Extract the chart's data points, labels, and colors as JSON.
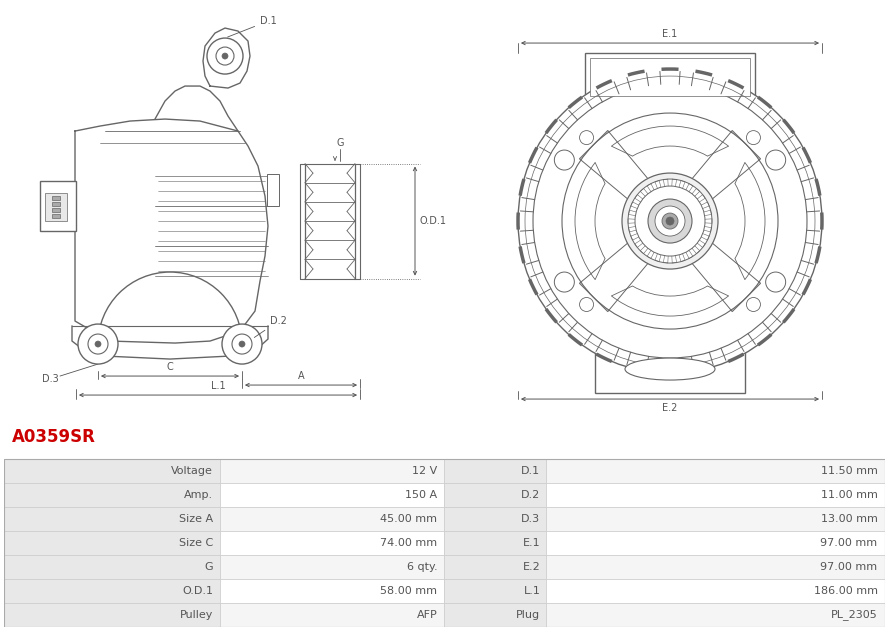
{
  "title": "A0359SR",
  "title_color": "#cc0000",
  "bg_color": "#ffffff",
  "table_data": [
    [
      "Voltage",
      "12 V",
      "D.1",
      "11.50 mm"
    ],
    [
      "Amp.",
      "150 A",
      "D.2",
      "11.00 mm"
    ],
    [
      "Size A",
      "45.00 mm",
      "D.3",
      "13.00 mm"
    ],
    [
      "Size C",
      "74.00 mm",
      "E.1",
      "97.00 mm"
    ],
    [
      "G",
      "6 qty.",
      "E.2",
      "97.00 mm"
    ],
    [
      "O.D.1",
      "58.00 mm",
      "L.1",
      "186.00 mm"
    ],
    [
      "Pulley",
      "AFP",
      "Plug",
      "PL_2305"
    ]
  ],
  "lc": "#666666",
  "dc": "#555555",
  "tc": "#555555",
  "table_text_color": "#555555",
  "label_bg": "#e8e8e8",
  "row_bg_even": "#f5f5f5",
  "row_bg_white": "#ffffff"
}
